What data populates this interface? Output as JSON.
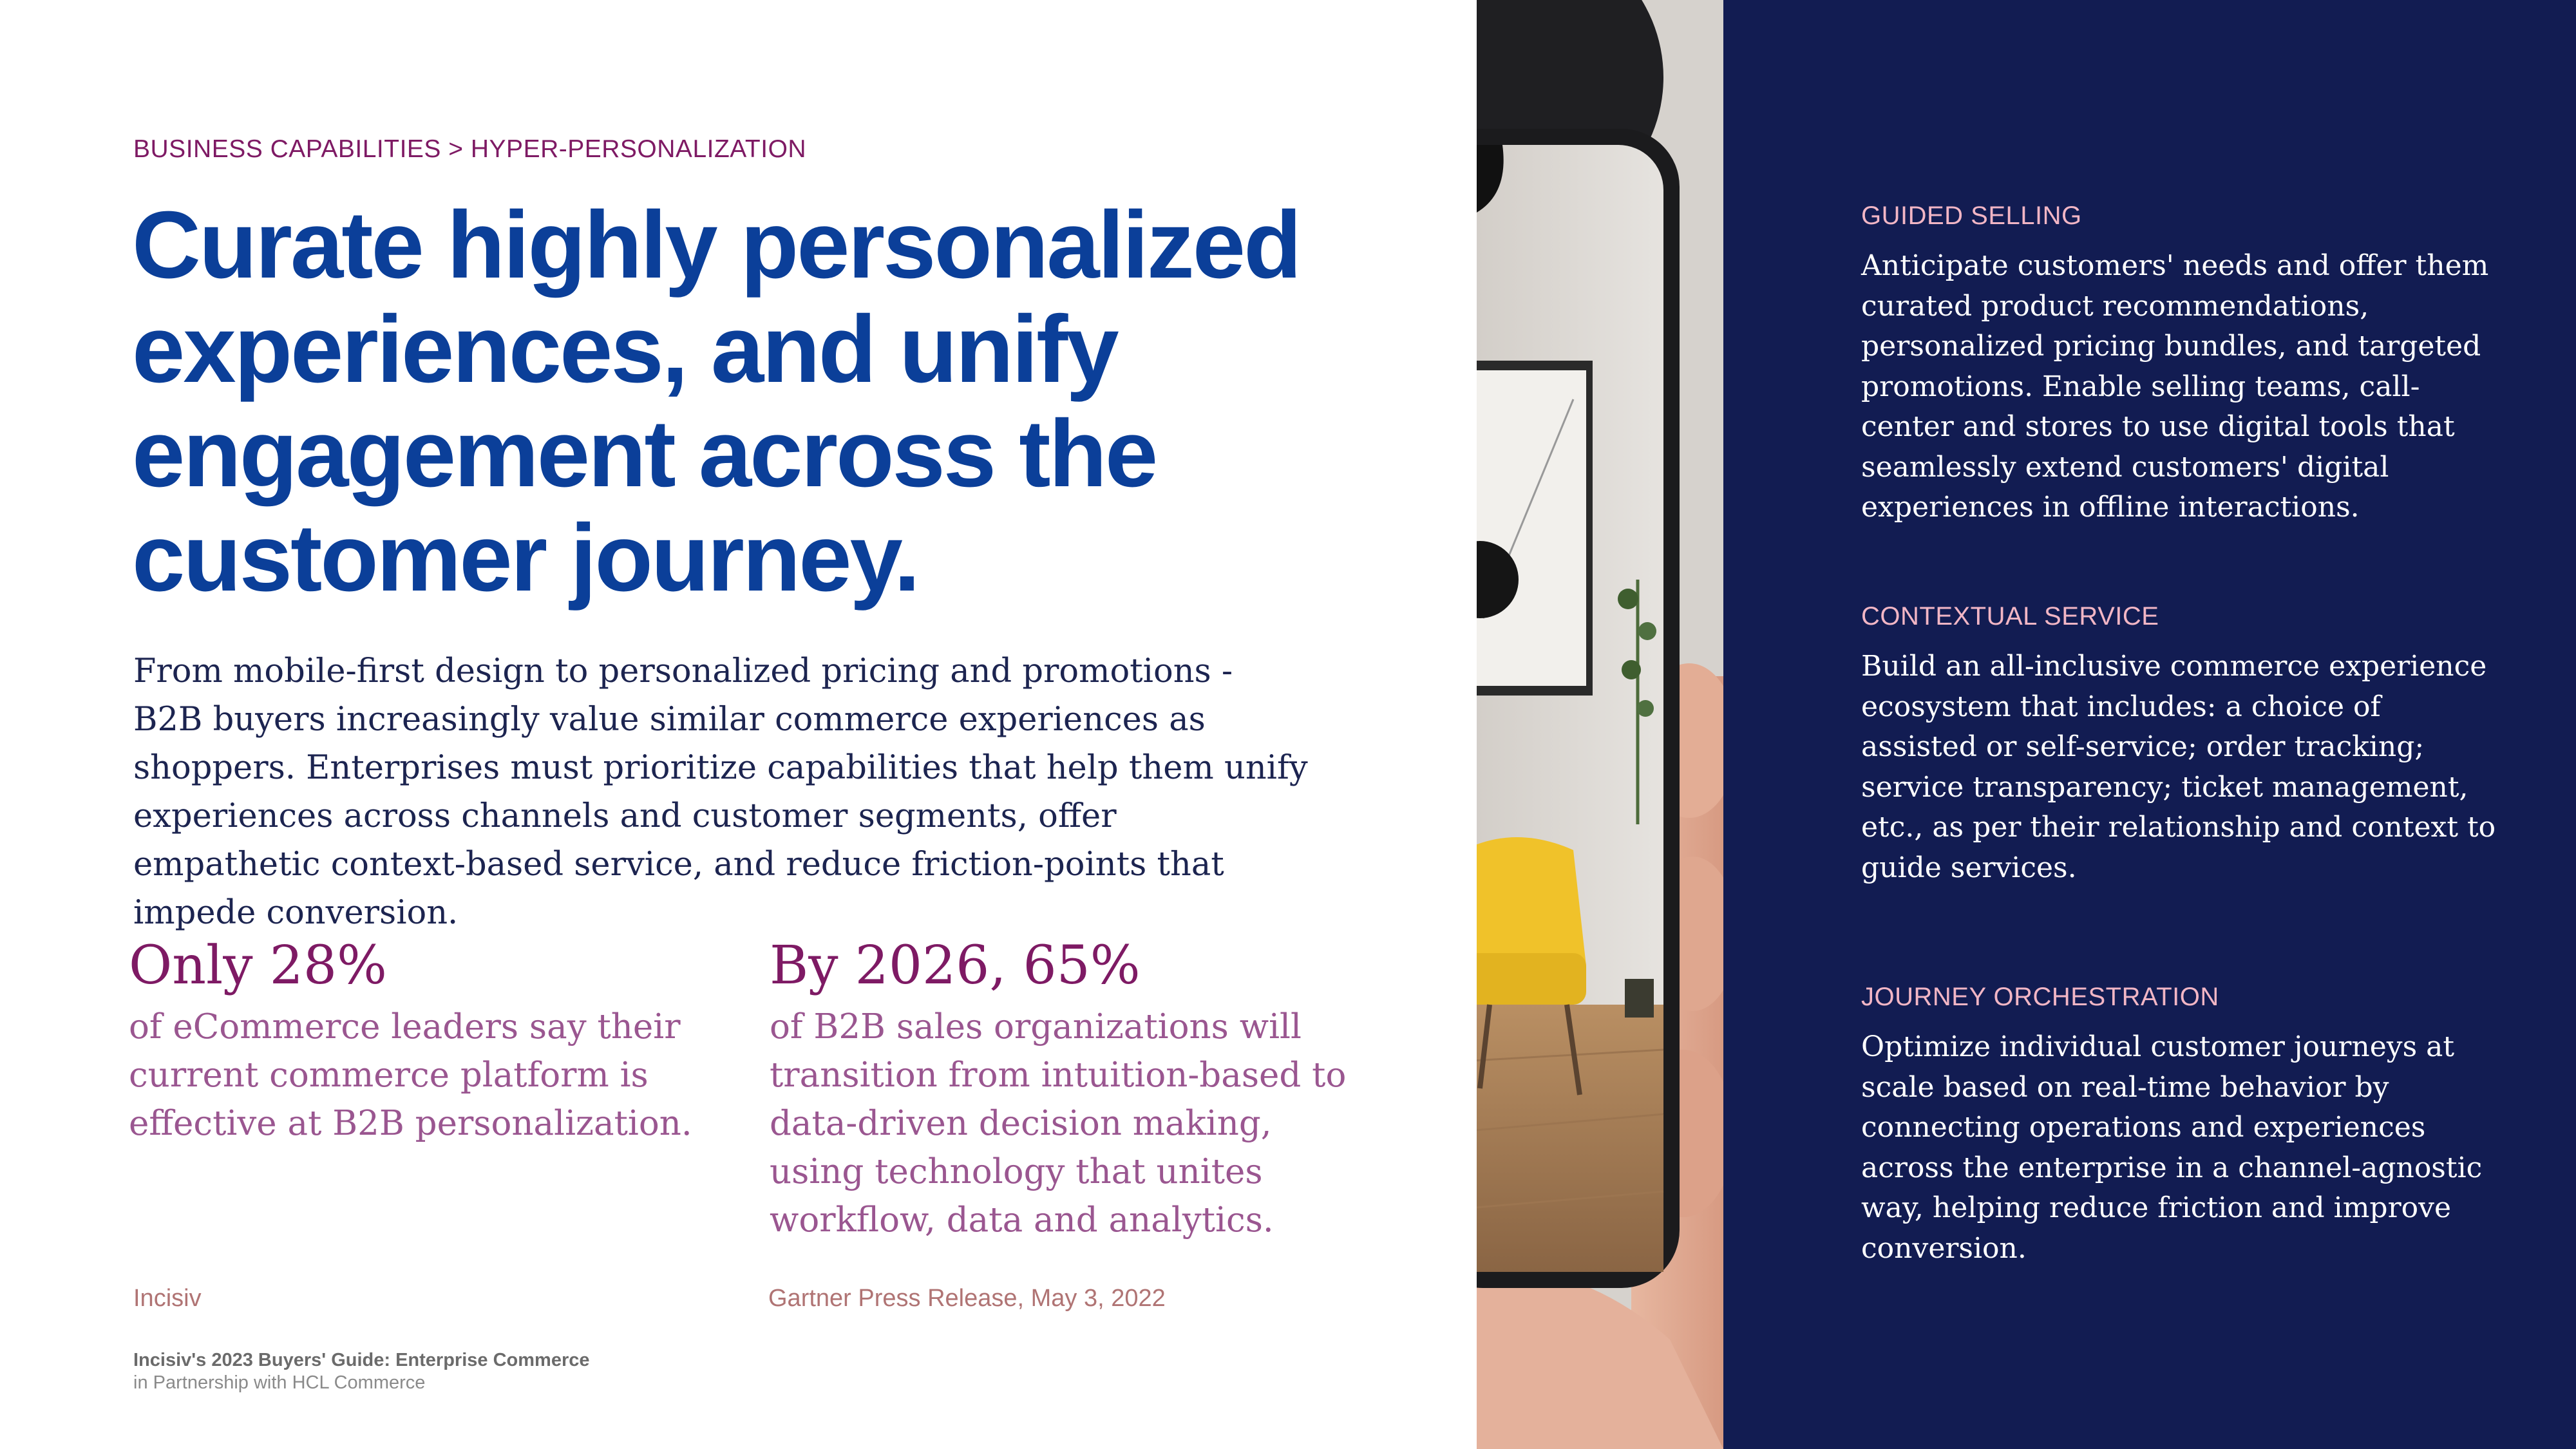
{
  "breadcrumb": "BUSINESS CAPABILITIES > HYPER-PERSONALIZATION",
  "headline": "Curate highly personalized experiences, and unify engagement across the customer journey.",
  "intro": "From mobile-first design to personalized pricing and promotions - B2B buyers increasingly value similar commerce experiences as shoppers. Enterprises must prioritize capabilities that help them unify experiences across channels and customer segments, offer empathetic context-based service, and reduce friction-points that impede conversion.",
  "stats": [
    {
      "value": "Only 28%",
      "text": "of eCommerce leaders say their current commerce platform is effective at B2B personalization.",
      "source": "Incisiv"
    },
    {
      "value": "By 2026, 65%",
      "text": "of B2B sales organizations will transition from intuition-based to data-driven decision making, using technology that unites workflow, data and analytics.",
      "source": "Gartner Press Release, May 3, 2022"
    }
  ],
  "footer": {
    "title": "Incisiv's 2023 Buyers' Guide: Enterprise Commerce",
    "subtitle": "in Partnership with HCL Commerce"
  },
  "capabilities": [
    {
      "title": "GUIDED SELLING",
      "body": "Anticipate customers' needs and offer them curated product recommendations, personalized pricing bundles, and targeted promotions. Enable selling teams, call-center and stores to use digital tools that seamlessly extend customers' digital experiences in offline interactions."
    },
    {
      "title": "CONTEXTUAL SERVICE",
      "body": "Build an all-inclusive commerce experience ecosystem that includes: a choice of assisted or self-service; order tracking; service transparency; ticket management, etc., as per their relationship and context to guide services."
    },
    {
      "title": "JOURNEY ORCHESTRATION",
      "body": "Optimize individual customer journeys at scale based on real-time behavior by connecting operations and experiences across the enterprise in a channel-agnostic way, helping reduce friction and improve conversion."
    }
  ],
  "colors": {
    "headline": "#0b3f99",
    "accent_purple": "#7e1a64",
    "panel_navy": "#121c52",
    "cap_title_pink": "#f2b6c5"
  }
}
